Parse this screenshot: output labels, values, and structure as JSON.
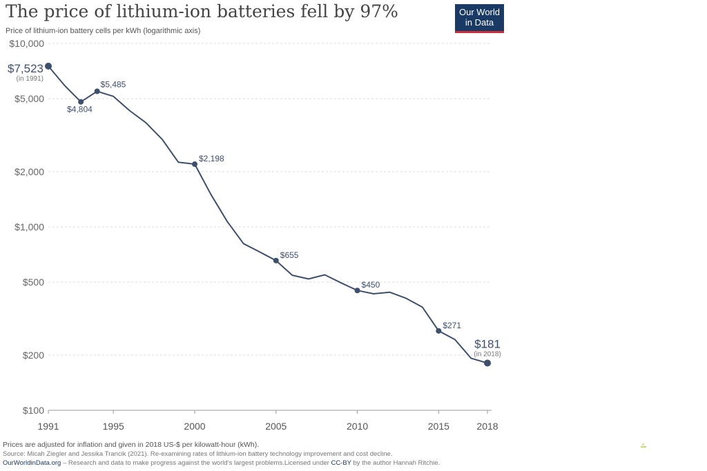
{
  "header": {
    "title": "The price of lithium-ion batteries fell by 97%",
    "subtitle": "Price of lithium-ion battery cells per kWh (logarithmic axis)"
  },
  "logo": {
    "line1": "Our World",
    "line2": "in Data"
  },
  "chart_data": {
    "type": "line",
    "title": "The price of lithium-ion batteries fell by 97%",
    "ylabel": "Price of lithium-ion battery cells per kWh (logarithmic axis)",
    "yscale": "log",
    "ylim": [
      100,
      10000
    ],
    "xlim": [
      1991,
      2018
    ],
    "y_ticks": [
      10000,
      5000,
      2000,
      1000,
      500,
      200,
      100
    ],
    "y_tick_labels": [
      "$10,000",
      "$5,000",
      "$2,000",
      "$1,000",
      "$500",
      "$200",
      "$100"
    ],
    "x_ticks": [
      1991,
      1995,
      2000,
      2005,
      2010,
      2015,
      2018
    ],
    "x_tick_labels": [
      "1991",
      "1995",
      "2000",
      "2005",
      "2010",
      "2015",
      "2018"
    ],
    "grid": "horizontal dashed",
    "line_color": "#3d4f6b",
    "series": [
      {
        "name": "Price per kWh",
        "x": [
          1991,
          1992,
          1993,
          1994,
          1995,
          1996,
          1997,
          1998,
          1999,
          2000,
          2001,
          2002,
          2003,
          2004,
          2005,
          2006,
          2007,
          2008,
          2009,
          2010,
          2011,
          2012,
          2013,
          2014,
          2015,
          2016,
          2017,
          2018
        ],
        "values": [
          7523,
          5900,
          4804,
          5485,
          5150,
          4300,
          3700,
          3000,
          2250,
          2198,
          1500,
          1070,
          810,
          730,
          655,
          545,
          520,
          548,
          495,
          450,
          432,
          440,
          408,
          365,
          271,
          243,
          192,
          181
        ]
      }
    ],
    "annotations": [
      {
        "x": 1991,
        "value": 7523,
        "label": "$7,523",
        "sub": "(in 1991)",
        "big": true
      },
      {
        "x": 1993,
        "value": 4804,
        "label": "$4,804"
      },
      {
        "x": 1994,
        "value": 5485,
        "label": "$5,485"
      },
      {
        "x": 2000,
        "value": 2198,
        "label": "$2,198"
      },
      {
        "x": 2005,
        "value": 655,
        "label": "$655"
      },
      {
        "x": 2010,
        "value": 450,
        "label": "$450"
      },
      {
        "x": 2015,
        "value": 271,
        "label": "$271"
      },
      {
        "x": 2018,
        "value": 181,
        "label": "$181",
        "sub": "(in 2018)",
        "big": true
      }
    ]
  },
  "footer": {
    "note": "Prices are adjusted for inflation and given in 2018 US-$ per kilowatt-hour (kWh).",
    "source": "Source: Micah Ziegler and Jessika Trancik (2021). Re-examining rates of lithium-ion battery technology improvement and cost decline.",
    "site": "OurWorldinData.org",
    "tagline": " – Research and data to make progress against the world’s largest problems.",
    "license_pre": "Licensed under ",
    "license": "CC-BY",
    "license_post": " by the author Hannah Ritchie."
  }
}
